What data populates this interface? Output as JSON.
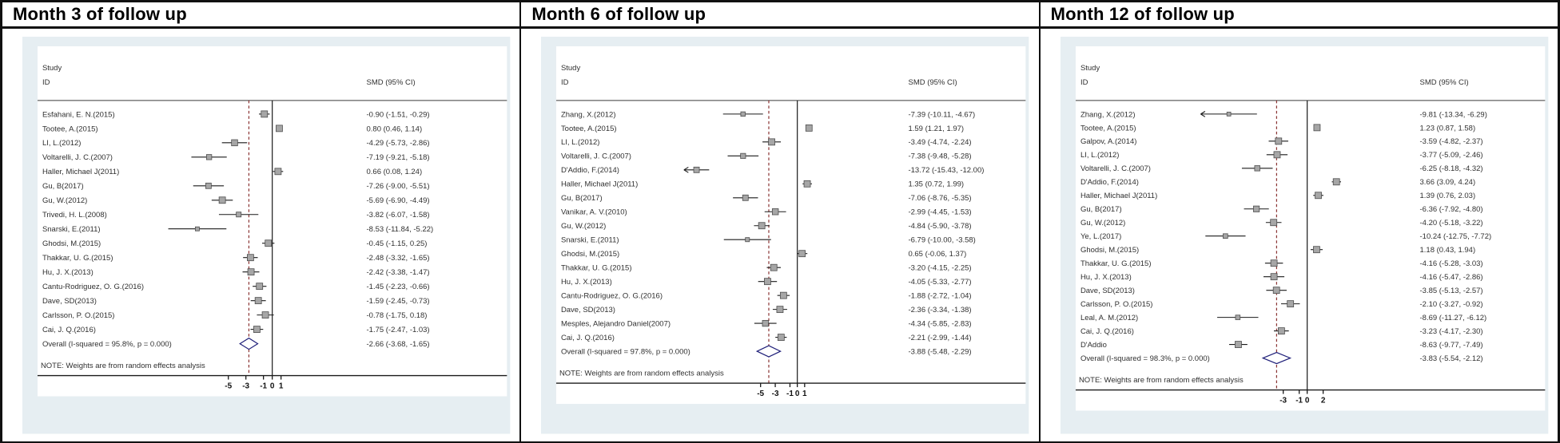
{
  "chart_data": [
    {
      "type": "forest",
      "title": "Month 3 of follow up",
      "col_header_study_line1": "Study",
      "col_header_study_line2": "ID",
      "col_header_smd": "SMD (95% CI)",
      "note": "NOTE: Weights are from random effects analysis",
      "axis_ticks": [
        -5,
        -3,
        -1,
        0,
        1
      ],
      "studies": [
        {
          "id": "Esfahani, E. N.(2015)",
          "smd": -0.9,
          "lo": -1.51,
          "hi": -0.29,
          "label": "-0.90 (-1.51, -0.29)"
        },
        {
          "id": "Tootee, A.(2015)",
          "smd": 0.8,
          "lo": 0.46,
          "hi": 1.14,
          "label": "0.80 (0.46, 1.14)"
        },
        {
          "id": "LI, L.(2012)",
          "smd": -4.29,
          "lo": -5.73,
          "hi": -2.86,
          "label": "-4.29 (-5.73, -2.86)"
        },
        {
          "id": "Voltarelli, J. C.(2007)",
          "smd": -7.19,
          "lo": -9.21,
          "hi": -5.18,
          "label": "-7.19 (-9.21, -5.18)"
        },
        {
          "id": "Haller, Michael J(2011)",
          "smd": 0.66,
          "lo": 0.08,
          "hi": 1.24,
          "label": "0.66 (0.08, 1.24)"
        },
        {
          "id": "Gu, B(2017)",
          "smd": -7.26,
          "lo": -9.0,
          "hi": -5.51,
          "label": "-7.26 (-9.00, -5.51)"
        },
        {
          "id": "Gu, W.(2012)",
          "smd": -5.69,
          "lo": -6.9,
          "hi": -4.49,
          "label": "-5.69 (-6.90, -4.49)"
        },
        {
          "id": "Trivedi, H. L.(2008)",
          "smd": -3.82,
          "lo": -6.07,
          "hi": -1.58,
          "label": "-3.82 (-6.07, -1.58)"
        },
        {
          "id": "Snarski, E.(2011)",
          "smd": -8.53,
          "lo": -11.84,
          "hi": -5.22,
          "label": "-8.53 (-11.84, -5.22)"
        },
        {
          "id": "Ghodsi, M.(2015)",
          "smd": -0.45,
          "lo": -1.15,
          "hi": 0.25,
          "label": "-0.45 (-1.15, 0.25)"
        },
        {
          "id": "Thakkar, U. G.(2015)",
          "smd": -2.48,
          "lo": -3.32,
          "hi": -1.65,
          "label": "-2.48 (-3.32, -1.65)"
        },
        {
          "id": "Hu, J. X.(2013)",
          "smd": -2.42,
          "lo": -3.38,
          "hi": -1.47,
          "label": "-2.42 (-3.38, -1.47)"
        },
        {
          "id": "Cantu-Rodriguez, O. G.(2016)",
          "smd": -1.45,
          "lo": -2.23,
          "hi": -0.66,
          "label": "-1.45 (-2.23, -0.66)"
        },
        {
          "id": "Dave, SD(2013)",
          "smd": -1.59,
          "lo": -2.45,
          "hi": -0.73,
          "label": "-1.59 (-2.45, -0.73)"
        },
        {
          "id": "Carlsson, P. O.(2015)",
          "smd": -0.78,
          "lo": -1.75,
          "hi": 0.18,
          "label": "-0.78 (-1.75, 0.18)"
        },
        {
          "id": "Cai, J. Q.(2016)",
          "smd": -1.75,
          "lo": -2.47,
          "hi": -1.03,
          "label": "-1.75 (-2.47, -1.03)"
        }
      ],
      "overall": {
        "id": "Overall  (I-squared = 95.8%, p = 0.000)",
        "smd": -2.66,
        "lo": -3.68,
        "hi": -1.65,
        "label": "-2.66 (-3.68, -1.65)"
      }
    },
    {
      "type": "forest",
      "title": "Month 6 of follow up",
      "col_header_study_line1": "Study",
      "col_header_study_line2": "ID",
      "col_header_smd": "SMD (95% CI)",
      "note": "NOTE: Weights are from random effects analysis",
      "axis_ticks": [
        -5,
        -3,
        -1,
        0,
        1
      ],
      "studies": [
        {
          "id": "Zhang, X.(2012)",
          "smd": -7.39,
          "lo": -10.11,
          "hi": -4.67,
          "label": "-7.39 (-10.11, -4.67)"
        },
        {
          "id": "Tootee, A.(2015)",
          "smd": 1.59,
          "lo": 1.21,
          "hi": 1.97,
          "label": "1.59 (1.21, 1.97)"
        },
        {
          "id": "LI, L.(2012)",
          "smd": -3.49,
          "lo": -4.74,
          "hi": -2.24,
          "label": "-3.49 (-4.74, -2.24)"
        },
        {
          "id": "Voltarelli, J. C.(2007)",
          "smd": -7.38,
          "lo": -9.48,
          "hi": -5.28,
          "label": "-7.38 (-9.48, -5.28)"
        },
        {
          "id": "D'Addio, F.(2014)",
          "smd": -13.72,
          "lo": -15.43,
          "hi": -12.0,
          "label": "-13.72 (-15.43, -12.00)",
          "clip": "left"
        },
        {
          "id": "Haller, Michael J(2011)",
          "smd": 1.35,
          "lo": 0.72,
          "hi": 1.99,
          "label": "1.35 (0.72, 1.99)"
        },
        {
          "id": "Gu, B(2017)",
          "smd": -7.06,
          "lo": -8.76,
          "hi": -5.35,
          "label": "-7.06 (-8.76, -5.35)"
        },
        {
          "id": "Vanikar, A. V.(2010)",
          "smd": -2.99,
          "lo": -4.45,
          "hi": -1.53,
          "label": "-2.99 (-4.45, -1.53)"
        },
        {
          "id": "Gu, W.(2012)",
          "smd": -4.84,
          "lo": -5.9,
          "hi": -3.78,
          "label": "-4.84 (-5.90, -3.78)"
        },
        {
          "id": "Snarski, E.(2011)",
          "smd": -6.79,
          "lo": -10.0,
          "hi": -3.58,
          "label": "-6.79 (-10.00, -3.58)"
        },
        {
          "id": "Ghodsi, M.(2015)",
          "smd": 0.65,
          "lo": -0.06,
          "hi": 1.37,
          "label": "0.65 (-0.06, 1.37)"
        },
        {
          "id": "Thakkar, U. G.(2015)",
          "smd": -3.2,
          "lo": -4.15,
          "hi": -2.25,
          "label": "-3.20 (-4.15, -2.25)"
        },
        {
          "id": "Hu, J. X.(2013)",
          "smd": -4.05,
          "lo": -5.33,
          "hi": -2.77,
          "label": "-4.05 (-5.33, -2.77)"
        },
        {
          "id": "Cantu-Rodriguez, O. G.(2016)",
          "smd": -1.88,
          "lo": -2.72,
          "hi": -1.04,
          "label": "-1.88 (-2.72, -1.04)"
        },
        {
          "id": "Dave, SD(2013)",
          "smd": -2.36,
          "lo": -3.34,
          "hi": -1.38,
          "label": "-2.36 (-3.34, -1.38)"
        },
        {
          "id": "Mesples, Alejandro Daniel(2007)",
          "smd": -4.34,
          "lo": -5.85,
          "hi": -2.83,
          "label": "-4.34 (-5.85, -2.83)"
        },
        {
          "id": "Cai, J. Q.(2016)",
          "smd": -2.21,
          "lo": -2.99,
          "hi": -1.44,
          "label": "-2.21 (-2.99, -1.44)"
        }
      ],
      "overall": {
        "id": "Overall  (I-squared = 97.8%, p = 0.000)",
        "smd": -3.88,
        "lo": -5.48,
        "hi": -2.29,
        "label": "-3.88 (-5.48, -2.29)"
      }
    },
    {
      "type": "forest",
      "title": "Month 12 of follow up",
      "col_header_study_line1": "Study",
      "col_header_study_line2": "ID",
      "col_header_smd": "SMD (95% CI)",
      "note": "NOTE: Weights are from random effects analysis",
      "axis_ticks": [
        -3,
        -1,
        0,
        2
      ],
      "studies": [
        {
          "id": "Zhang, X.(2012)",
          "smd": -9.81,
          "lo": -13.34,
          "hi": -6.29,
          "label": "-9.81 (-13.34, -6.29)",
          "clip": "left"
        },
        {
          "id": "Tootee, A.(2015)",
          "smd": 1.23,
          "lo": 0.87,
          "hi": 1.58,
          "label": "1.23 (0.87, 1.58)"
        },
        {
          "id": "Galpov, A.(2014)",
          "smd": -3.59,
          "lo": -4.82,
          "hi": -2.37,
          "label": "-3.59 (-4.82, -2.37)"
        },
        {
          "id": "LI, L.(2012)",
          "smd": -3.77,
          "lo": -5.09,
          "hi": -2.46,
          "label": "-3.77 (-5.09, -2.46)"
        },
        {
          "id": "Voltarelli, J. C.(2007)",
          "smd": -6.25,
          "lo": -8.18,
          "hi": -4.32,
          "label": "-6.25 (-8.18, -4.32)"
        },
        {
          "id": "D'Addio, F.(2014)",
          "smd": 3.66,
          "lo": 3.09,
          "hi": 4.24,
          "label": "3.66 (3.09, 4.24)"
        },
        {
          "id": "Haller, Michael J(2011)",
          "smd": 1.39,
          "lo": 0.76,
          "hi": 2.03,
          "label": "1.39 (0.76, 2.03)"
        },
        {
          "id": "Gu, B(2017)",
          "smd": -6.36,
          "lo": -7.92,
          "hi": -4.8,
          "label": "-6.36 (-7.92, -4.80)"
        },
        {
          "id": "Gu, W.(2012)",
          "smd": -4.2,
          "lo": -5.18,
          "hi": -3.22,
          "label": "-4.20 (-5.18, -3.22)"
        },
        {
          "id": "Ye, L.(2017)",
          "smd": -10.24,
          "lo": -12.75,
          "hi": -7.72,
          "label": "-10.24 (-12.75, -7.72)"
        },
        {
          "id": "Ghodsi, M.(2015)",
          "smd": 1.18,
          "lo": 0.43,
          "hi": 1.94,
          "label": "1.18 (0.43, 1.94)"
        },
        {
          "id": "Thakkar, U. G.(2015)",
          "smd": -4.16,
          "lo": -5.28,
          "hi": -3.03,
          "label": "-4.16 (-5.28, -3.03)"
        },
        {
          "id": "Hu, J. X.(2013)",
          "smd": -4.16,
          "lo": -5.47,
          "hi": -2.86,
          "label": "-4.16 (-5.47, -2.86)"
        },
        {
          "id": "Dave, SD(2013)",
          "smd": -3.85,
          "lo": -5.13,
          "hi": -2.57,
          "label": "-3.85 (-5.13, -2.57)"
        },
        {
          "id": "Carlsson, P. O.(2015)",
          "smd": -2.1,
          "lo": -3.27,
          "hi": -0.92,
          "label": "-2.10 (-3.27, -0.92)"
        },
        {
          "id": "Leal, A. M.(2012)",
          "smd": -8.69,
          "lo": -11.27,
          "hi": -6.12,
          "label": "-8.69 (-11.27, -6.12)"
        },
        {
          "id": "Cai, J. Q.(2016)",
          "smd": -3.23,
          "lo": -4.17,
          "hi": -2.3,
          "label": "-3.23 (-4.17, -2.30)"
        },
        {
          "id": "D'Addio",
          "smd": -8.63,
          "lo": -9.77,
          "hi": -7.49,
          "label": "-8.63 (-9.77, -7.49)"
        }
      ],
      "overall": {
        "id": "Overall  (I-squared = 98.3%, p = 0.000)",
        "smd": -3.83,
        "lo": -5.54,
        "hi": -2.12,
        "label": "-3.83 (-5.54, -2.12)"
      }
    }
  ],
  "colors": {
    "plot_background": "#e6eef2",
    "canvas": "#ffffff",
    "marker_fill": "#a6a6a6",
    "marker_stroke": "#4d4d4d",
    "ci_line": "#1a1a1a",
    "zero_line": "#2a2a2a",
    "overall_dashed_line": "#8a3332",
    "diamond_stroke": "#20207a",
    "text": "#303030"
  }
}
